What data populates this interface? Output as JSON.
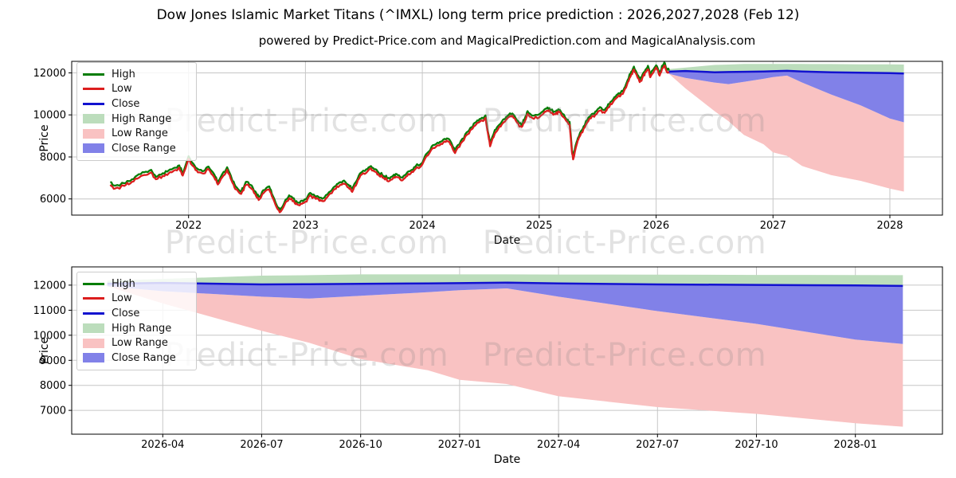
{
  "page": {
    "title": "Dow Jones Islamic Market Titans (^IMXL) long term price prediction : 2026,2027,2028 (Feb 12)",
    "subtitle": "powered by Predict-Price.com and MagicalPrediction.com and MagicalAnalysis.com"
  },
  "watermark": "Predict-Price.com",
  "colors": {
    "high": "#067d06",
    "low": "#dc1e1e",
    "close": "#1212cf",
    "high_range": "#bcddbc",
    "low_range": "#f9c2c2",
    "close_range": "#8181e8",
    "grid": "#c6c6c6",
    "spine": "#000000",
    "tick_text": "#000000"
  },
  "legend": {
    "items": [
      {
        "label": "High",
        "swatch": "line",
        "color": "high"
      },
      {
        "label": "Low",
        "swatch": "line",
        "color": "low"
      },
      {
        "label": "Close",
        "swatch": "line",
        "color": "close"
      },
      {
        "label": "High Range",
        "swatch": "patch",
        "color": "high_range"
      },
      {
        "label": "Low Range",
        "swatch": "patch",
        "color": "low_range"
      },
      {
        "label": "Close Range",
        "swatch": "patch",
        "color": "close_range"
      }
    ]
  },
  "chart_data": {
    "type": "line",
    "title": "Dow Jones Islamic Market Titans (^IMXL) long term price prediction : 2026,2027,2028 (Feb 12)",
    "xlabel": "Date",
    "ylabel": "Price",
    "legend_entries": [
      "High",
      "Low",
      "Close",
      "High Range",
      "Low Range",
      "Close Range"
    ],
    "grid": true,
    "legend_position": "upper left",
    "axes": {
      "top": {
        "xlim": [
          2021.0,
          2028.45
        ],
        "ylim": [
          5230,
          12550
        ],
        "xticks": [
          2022,
          2023,
          2024,
          2025,
          2026,
          2027,
          2028
        ],
        "xtick_labels": [
          "2022",
          "2023",
          "2024",
          "2025",
          "2026",
          "2027",
          "2028"
        ],
        "yticks": [
          6000,
          8000,
          10000,
          12000
        ],
        "ytick_labels": [
          "6000",
          "8000",
          "10000",
          "12000"
        ]
      },
      "bottom": {
        "xlim": [
          2026.02,
          2028.22
        ],
        "ylim": [
          6050,
          12730
        ],
        "xticks": [
          2026.25,
          2026.5,
          2026.75,
          2027.0,
          2027.25,
          2027.5,
          2027.75,
          2028.0
        ],
        "xtick_labels": [
          "2026-04",
          "2026-07",
          "2026-10",
          "2027-01",
          "2027-04",
          "2027-07",
          "2027-10",
          "2028-01"
        ],
        "yticks": [
          7000,
          8000,
          9000,
          10000,
          11000,
          12000
        ],
        "ytick_labels": [
          "7000",
          "8000",
          "9000",
          "10000",
          "11000",
          "12000"
        ]
      }
    },
    "historical": {
      "description": "Daily High/Low/Close history May 2021 - Feb 12 2026; Close anchor points read from chart, High/Low hug Close within ~1%",
      "points": [
        [
          2021.33,
          6730
        ],
        [
          2021.37,
          6560
        ],
        [
          2021.45,
          6700
        ],
        [
          2021.5,
          6810
        ],
        [
          2021.56,
          7050
        ],
        [
          2021.62,
          7200
        ],
        [
          2021.68,
          7300
        ],
        [
          2021.72,
          7000
        ],
        [
          2021.78,
          7150
        ],
        [
          2021.83,
          7280
        ],
        [
          2021.88,
          7420
        ],
        [
          2021.92,
          7560
        ],
        [
          2021.95,
          7150
        ],
        [
          2022.0,
          7950
        ],
        [
          2022.04,
          7620
        ],
        [
          2022.08,
          7350
        ],
        [
          2022.13,
          7280
        ],
        [
          2022.17,
          7500
        ],
        [
          2022.22,
          7100
        ],
        [
          2022.25,
          6730
        ],
        [
          2022.3,
          7200
        ],
        [
          2022.33,
          7430
        ],
        [
          2022.37,
          6900
        ],
        [
          2022.4,
          6540
        ],
        [
          2022.45,
          6290
        ],
        [
          2022.49,
          6730
        ],
        [
          2022.53,
          6600
        ],
        [
          2022.57,
          6300
        ],
        [
          2022.6,
          6030
        ],
        [
          2022.64,
          6350
        ],
        [
          2022.69,
          6540
        ],
        [
          2022.72,
          6100
        ],
        [
          2022.75,
          5710
        ],
        [
          2022.78,
          5420
        ],
        [
          2022.82,
          5780
        ],
        [
          2022.86,
          6095
        ],
        [
          2022.9,
          5950
        ],
        [
          2022.93,
          5780
        ],
        [
          2022.97,
          5850
        ],
        [
          2023.0,
          5905
        ],
        [
          2023.04,
          6220
        ],
        [
          2023.08,
          6100
        ],
        [
          2023.12,
          5980
        ],
        [
          2023.15,
          5950
        ],
        [
          2023.2,
          6250
        ],
        [
          2023.25,
          6540
        ],
        [
          2023.29,
          6700
        ],
        [
          2023.33,
          6800
        ],
        [
          2023.37,
          6600
        ],
        [
          2023.4,
          6413
        ],
        [
          2023.44,
          6800
        ],
        [
          2023.47,
          7175
        ],
        [
          2023.52,
          7330
        ],
        [
          2023.56,
          7490
        ],
        [
          2023.6,
          7330
        ],
        [
          2023.63,
          7175
        ],
        [
          2023.67,
          7050
        ],
        [
          2023.71,
          6920
        ],
        [
          2023.75,
          7050
        ],
        [
          2023.78,
          7110
        ],
        [
          2023.82,
          6950
        ],
        [
          2023.86,
          7100
        ],
        [
          2023.9,
          7300
        ],
        [
          2023.94,
          7490
        ],
        [
          2024.0,
          7680
        ],
        [
          2024.04,
          8100
        ],
        [
          2024.08,
          8440
        ],
        [
          2024.13,
          8600
        ],
        [
          2024.17,
          8700
        ],
        [
          2024.21,
          8825
        ],
        [
          2024.25,
          8600
        ],
        [
          2024.28,
          8250
        ],
        [
          2024.33,
          8700
        ],
        [
          2024.38,
          9100
        ],
        [
          2024.42,
          9350
        ],
        [
          2024.46,
          9590
        ],
        [
          2024.5,
          9780
        ],
        [
          2024.54,
          9905
        ],
        [
          2024.57,
          8900
        ],
        [
          2024.58,
          8570
        ],
        [
          2024.62,
          9200
        ],
        [
          2024.66,
          9500
        ],
        [
          2024.7,
          9714
        ],
        [
          2024.73,
          9900
        ],
        [
          2024.77,
          10032
        ],
        [
          2024.81,
          9700
        ],
        [
          2024.85,
          9460
        ],
        [
          2024.88,
          9800
        ],
        [
          2024.9,
          10095
        ],
        [
          2024.94,
          9905
        ],
        [
          2025.0,
          9968
        ],
        [
          2025.04,
          10150
        ],
        [
          2025.07,
          10286
        ],
        [
          2025.1,
          10150
        ],
        [
          2025.14,
          10095
        ],
        [
          2025.17,
          10200
        ],
        [
          2025.2,
          9968
        ],
        [
          2025.24,
          9700
        ],
        [
          2025.26,
          9590
        ],
        [
          2025.28,
          8300
        ],
        [
          2025.29,
          7950
        ],
        [
          2025.32,
          8650
        ],
        [
          2025.34,
          8952
        ],
        [
          2025.38,
          9397
        ],
        [
          2025.42,
          9785
        ],
        [
          2025.45,
          9968
        ],
        [
          2025.49,
          10100
        ],
        [
          2025.52,
          10286
        ],
        [
          2025.56,
          10180
        ],
        [
          2025.59,
          10430
        ],
        [
          2025.63,
          10650
        ],
        [
          2025.66,
          10857
        ],
        [
          2025.7,
          11000
        ],
        [
          2025.72,
          11111
        ],
        [
          2025.75,
          11500
        ],
        [
          2025.78,
          11900
        ],
        [
          2025.81,
          12215
        ],
        [
          2025.84,
          11850
        ],
        [
          2025.86,
          11620
        ],
        [
          2025.89,
          11900
        ],
        [
          2025.91,
          12100
        ],
        [
          2025.93,
          12253
        ],
        [
          2025.95,
          11873
        ],
        [
          2026.0,
          12316
        ],
        [
          2026.03,
          11937
        ],
        [
          2026.05,
          12250
        ],
        [
          2026.07,
          12430
        ],
        [
          2026.09,
          12150
        ],
        [
          2026.11,
          12060
        ]
      ]
    },
    "prediction": {
      "description": "Forecast bands Feb 12 2026 - Feb 12 2028",
      "x": [
        2026.11,
        2026.25,
        2026.5,
        2026.62,
        2026.75,
        2026.92,
        2027.0,
        2027.12,
        2027.25,
        2027.5,
        2027.75,
        2028.0,
        2028.12
      ],
      "high_range_top": [
        12180,
        12250,
        12380,
        12400,
        12430,
        12430,
        12430,
        12430,
        12425,
        12420,
        12410,
        12405,
        12400
      ],
      "close_line": [
        12060,
        12090,
        12030,
        12040,
        12055,
        12070,
        12080,
        12100,
        12070,
        12030,
        12010,
        11990,
        11970
      ],
      "close_range_bottom": [
        11960,
        11760,
        11540,
        11465,
        11575,
        11720,
        11800,
        11870,
        11540,
        10965,
        10455,
        9825,
        9650
      ],
      "low_range_bottom": [
        11960,
        11270,
        10180,
        9700,
        9050,
        8600,
        8220,
        8050,
        7565,
        7130,
        6860,
        6490,
        6350
      ]
    }
  }
}
